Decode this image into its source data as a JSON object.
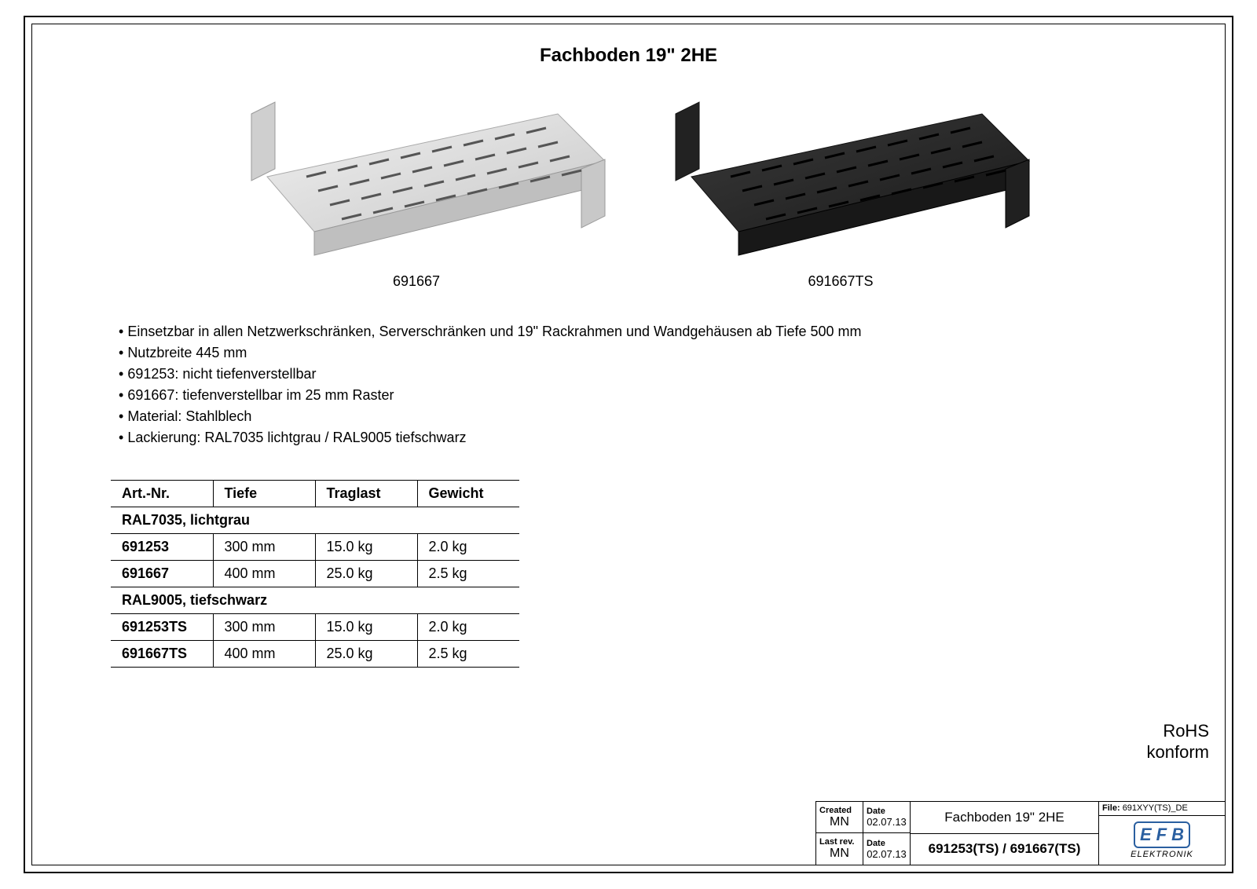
{
  "title": "Fachboden 19\" 2HE",
  "images": {
    "left": {
      "caption": "691667",
      "color": "#d8d8d8",
      "slot_color": "#555"
    },
    "right": {
      "caption": "691667TS",
      "color": "#2b2b2b",
      "slot_color": "#000"
    }
  },
  "bullets": [
    "Einsetzbar in allen Netzwerkschränken, Serverschränken und 19\" Rackrahmen und Wandgehäusen ab Tiefe 500 mm",
    "Nutzbreite 445 mm",
    "691253: nicht tiefenverstellbar",
    "691667: tiefenverstellbar im 25 mm Raster",
    "Material: Stahlblech",
    "Lackierung: RAL7035 lichtgrau / RAL9005 tiefschwarz"
  ],
  "table": {
    "columns": [
      "Art.-Nr.",
      "Tiefe",
      "Traglast",
      "Gewicht"
    ],
    "groups": [
      {
        "label": "RAL7035, lichtgrau",
        "rows": [
          [
            "691253",
            "300 mm",
            "15.0 kg",
            "2.0 kg"
          ],
          [
            "691667",
            "400 mm",
            "25.0 kg",
            "2.5 kg"
          ]
        ]
      },
      {
        "label": "RAL9005, tiefschwarz",
        "rows": [
          [
            "691253TS",
            "300 mm",
            "15.0 kg",
            "2.0 kg"
          ],
          [
            "691667TS",
            "400 mm",
            "25.0 kg",
            "2.5 kg"
          ]
        ]
      }
    ]
  },
  "rohs": {
    "line1": "RoHS",
    "line2": "konform"
  },
  "titleblock": {
    "created_label": "Created",
    "created_by": "MN",
    "created_date_label": "Date",
    "created_date": "02.07.13",
    "lastrev_label": "Last rev.",
    "lastrev_by": "MN",
    "lastrev_date_label": "Date",
    "lastrev_date": "02.07.13",
    "doc_title": "Fachboden 19\" 2HE",
    "doc_code": "691253(TS) / 691667(TS)",
    "file_label": "File:",
    "file_value": "691XYY(TS)_DE",
    "logo_letters": [
      "E",
      "F",
      "B"
    ],
    "logo_sub": "ELEKTRONIK",
    "logo_color": "#2a5fa0"
  }
}
